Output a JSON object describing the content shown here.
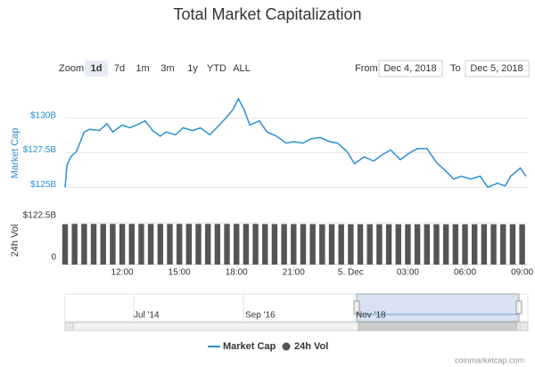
{
  "chart_data": {
    "type": "line",
    "title": "Total Market Capitalization",
    "range_selector": {
      "label": "Zoom",
      "buttons": [
        "1d",
        "7d",
        "1m",
        "3m",
        "1y",
        "YTD",
        "ALL"
      ],
      "selected_index": 0
    },
    "date_range": {
      "from_label": "From",
      "from": "Dec 4, 2018",
      "to_label": "To",
      "to": "Dec 5, 2018"
    },
    "ylabel": "Market Cap",
    "y2label": "24h Vol",
    "x": [
      9.0,
      9.1,
      9.3,
      9.6,
      10.0,
      10.3,
      10.8,
      11.2,
      11.5,
      12.0,
      12.4,
      12.9,
      13.2,
      13.6,
      14.0,
      14.3,
      14.8,
      15.2,
      15.7,
      16.1,
      16.6,
      17.1,
      17.5,
      17.8,
      18.1,
      18.4,
      18.7,
      19.2,
      19.6,
      20.1,
      20.6,
      21.0,
      21.5,
      21.9,
      22.4,
      22.9,
      23.3,
      23.8,
      24.2,
      24.7,
      25.2,
      25.7,
      26.1,
      26.6,
      27.1,
      27.5,
      28.0,
      28.5,
      28.9,
      29.4,
      29.8,
      30.3,
      30.8,
      31.2,
      31.7,
      32.1,
      32.4,
      32.9,
      33.2
    ],
    "series": [
      {
        "name": "Market Cap",
        "color": "#2b8fd0",
        "values": [
          125.0,
          126.6,
          127.2,
          127.6,
          129.0,
          129.2,
          129.1,
          129.6,
          129.0,
          129.5,
          129.3,
          129.6,
          129.8,
          129.1,
          128.7,
          129.0,
          128.8,
          129.3,
          129.1,
          129.3,
          128.8,
          129.5,
          130.1,
          130.6,
          131.4,
          130.6,
          129.5,
          129.8,
          129.0,
          128.7,
          128.2,
          128.3,
          128.2,
          128.5,
          128.6,
          128.3,
          128.2,
          127.6,
          126.7,
          127.2,
          126.9,
          127.4,
          127.7,
          127.0,
          127.5,
          127.8,
          127.8,
          126.8,
          126.3,
          125.6,
          125.8,
          125.6,
          125.8,
          125.0,
          125.3,
          125.1,
          125.8,
          126.4,
          125.8
        ]
      },
      {
        "name": "24h Vol",
        "color": "#555555",
        "type": "column",
        "axis": "y2",
        "x": [
          9.0,
          9.5,
          10.0,
          10.5,
          11.0,
          11.5,
          12.0,
          12.5,
          13.0,
          13.5,
          14.0,
          14.5,
          15.0,
          15.5,
          16.0,
          16.5,
          17.0,
          17.5,
          18.0,
          18.5,
          19.0,
          19.5,
          20.0,
          20.5,
          21.0,
          21.5,
          22.0,
          22.5,
          23.0,
          23.5,
          24.0,
          24.5,
          25.0,
          25.5,
          26.0,
          26.5,
          27.0,
          27.5,
          28.0,
          28.5,
          29.0,
          29.5,
          30.0,
          30.5,
          31.0,
          31.5,
          32.0,
          32.5,
          33.0
        ],
        "values": [
          118,
          119,
          119,
          119,
          119,
          119,
          119,
          119,
          119,
          119,
          119,
          119,
          119,
          119,
          119,
          119,
          119,
          119,
          119,
          119,
          119,
          118.5,
          118.5,
          118.5,
          118.5,
          118.5,
          118.5,
          118,
          118,
          118,
          118,
          118,
          118,
          118,
          118,
          118,
          118,
          118,
          118,
          118,
          118,
          118,
          118,
          118,
          118,
          118,
          118,
          118,
          118
        ]
      }
    ],
    "xlim": [
      9,
      33.3
    ],
    "xticks": [
      {
        "value": 12,
        "label": "12:00"
      },
      {
        "value": 15,
        "label": "15:00"
      },
      {
        "value": 18,
        "label": "18:00"
      },
      {
        "value": 21,
        "label": "21:00"
      },
      {
        "value": 24,
        "label": "5. Dec"
      },
      {
        "value": 27,
        "label": "03:00"
      },
      {
        "value": 30,
        "label": "06:00"
      },
      {
        "value": 33,
        "label": "09:00"
      }
    ],
    "ylim": [
      124.7,
      132.1
    ],
    "yticks": [
      {
        "value": 125,
        "label": "$125B"
      },
      {
        "value": 127.5,
        "label": "$127.5B"
      },
      {
        "value": 130,
        "label": "$130B"
      }
    ],
    "y2lim": [
      0,
      122.5
    ],
    "y2ticks": [
      0,
      {
        "value": 122.5,
        "label": "$122.5B"
      }
    ],
    "grid": true,
    "navigator": {
      "labels": [
        "Jul '14",
        "Sep '16",
        "Nov '18"
      ]
    },
    "credit": "coinmarketcap.com"
  }
}
